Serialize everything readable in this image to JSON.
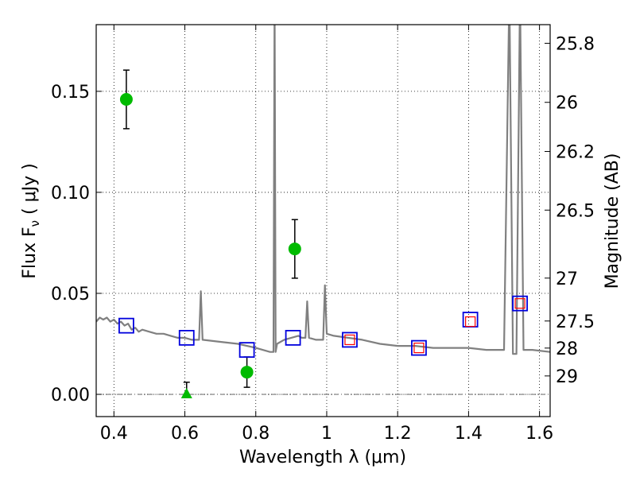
{
  "chart_data": {
    "type": "scatter",
    "xlabel": "Wavelength  λ (μm)",
    "ylabel": "Flux  F",
    "ylabel_sub": "ν",
    "ylabel_unit": "  ( μJy )",
    "y2label": "Magnitude (AB)",
    "xlim": [
      0.35,
      1.63
    ],
    "ylim": [
      -0.011,
      0.183
    ],
    "grid": true,
    "x_ticks": [
      {
        "value": 0.4,
        "label": "0.4"
      },
      {
        "value": 0.6,
        "label": "0.6"
      },
      {
        "value": 0.8,
        "label": "0.8"
      },
      {
        "value": 1.0,
        "label": "1"
      },
      {
        "value": 1.2,
        "label": "1.2"
      },
      {
        "value": 1.4,
        "label": "1.4"
      },
      {
        "value": 1.6,
        "label": "1.6"
      }
    ],
    "y_ticks": [
      {
        "value": 0.0,
        "label": "0.00"
      },
      {
        "value": 0.05,
        "label": "0.05"
      },
      {
        "value": 0.1,
        "label": "0.10"
      },
      {
        "value": 0.15,
        "label": "0.15"
      }
    ],
    "y2_ticks": [
      {
        "value": 25.8,
        "label": "25.8"
      },
      {
        "value": 26.0,
        "label": "26"
      },
      {
        "value": 26.2,
        "label": "26.2"
      },
      {
        "value": 26.5,
        "label": "26.5"
      },
      {
        "value": 27.0,
        "label": "27"
      },
      {
        "value": 27.5,
        "label": "27.5"
      },
      {
        "value": 28.0,
        "label": "28"
      },
      {
        "value": 29.0,
        "label": "29"
      }
    ],
    "model_spectrum": {
      "color": "#808080",
      "points": [
        [
          0.35,
          0.036
        ],
        [
          0.36,
          0.038
        ],
        [
          0.37,
          0.037
        ],
        [
          0.38,
          0.038
        ],
        [
          0.39,
          0.036
        ],
        [
          0.4,
          0.037
        ],
        [
          0.41,
          0.035
        ],
        [
          0.42,
          0.036
        ],
        [
          0.43,
          0.034
        ],
        [
          0.44,
          0.035
        ],
        [
          0.45,
          0.032
        ],
        [
          0.46,
          0.033
        ],
        [
          0.47,
          0.031
        ],
        [
          0.48,
          0.032
        ],
        [
          0.5,
          0.031
        ],
        [
          0.52,
          0.03
        ],
        [
          0.54,
          0.03
        ],
        [
          0.56,
          0.029
        ],
        [
          0.58,
          0.028
        ],
        [
          0.6,
          0.028
        ],
        [
          0.62,
          0.027
        ],
        [
          0.64,
          0.027
        ],
        [
          0.645,
          0.051
        ],
        [
          0.65,
          0.027
        ],
        [
          0.7,
          0.026
        ],
        [
          0.75,
          0.025
        ],
        [
          0.8,
          0.023
        ],
        [
          0.84,
          0.021
        ],
        [
          0.85,
          0.021
        ],
        [
          0.853,
          0.2
        ],
        [
          0.856,
          0.021
        ],
        [
          0.86,
          0.025
        ],
        [
          0.88,
          0.027
        ],
        [
          0.9,
          0.028
        ],
        [
          0.92,
          0.029
        ],
        [
          0.93,
          0.028
        ],
        [
          0.94,
          0.028
        ],
        [
          0.945,
          0.046
        ],
        [
          0.95,
          0.028
        ],
        [
          0.97,
          0.027
        ],
        [
          0.99,
          0.027
        ],
        [
          0.995,
          0.054
        ],
        [
          1.0,
          0.03
        ],
        [
          1.02,
          0.029
        ],
        [
          1.06,
          0.028
        ],
        [
          1.1,
          0.027
        ],
        [
          1.15,
          0.025
        ],
        [
          1.2,
          0.024
        ],
        [
          1.25,
          0.024
        ],
        [
          1.3,
          0.023
        ],
        [
          1.35,
          0.023
        ],
        [
          1.4,
          0.023
        ],
        [
          1.45,
          0.022
        ],
        [
          1.5,
          0.022
        ],
        [
          1.515,
          0.2
        ],
        [
          1.525,
          0.02
        ],
        [
          1.535,
          0.02
        ],
        [
          1.545,
          0.2
        ],
        [
          1.555,
          0.022
        ],
        [
          1.58,
          0.022
        ],
        [
          1.63,
          0.021
        ]
      ]
    },
    "series": [
      {
        "marker": "circle",
        "color": "#00bb00",
        "points": [
          {
            "x": 0.435,
            "y": 0.146,
            "yerr": 0.0145
          },
          {
            "x": 0.775,
            "y": 0.011,
            "yerr": 0.0075
          },
          {
            "x": 0.91,
            "y": 0.072,
            "yerr": 0.0145
          }
        ]
      },
      {
        "marker": "triangle",
        "color": "#00bb00",
        "points": [
          {
            "x": 0.605,
            "y": 0.0,
            "yerr_up": 0.006
          }
        ]
      },
      {
        "marker": "square-open",
        "color": "#0000dd",
        "points": [
          {
            "x": 0.435,
            "y": 0.034
          },
          {
            "x": 0.605,
            "y": 0.028
          },
          {
            "x": 0.775,
            "y": 0.022
          },
          {
            "x": 0.905,
            "y": 0.028
          },
          {
            "x": 1.065,
            "y": 0.027
          },
          {
            "x": 1.26,
            "y": 0.023
          },
          {
            "x": 1.405,
            "y": 0.037
          },
          {
            "x": 1.545,
            "y": 0.045
          }
        ]
      },
      {
        "marker": "square-open-small",
        "color": "#ff0000",
        "points": [
          {
            "x": 1.065,
            "y": 0.027
          },
          {
            "x": 1.26,
            "y": 0.023
          },
          {
            "x": 1.405,
            "y": 0.036
          },
          {
            "x": 1.545,
            "y": 0.045
          }
        ]
      }
    ]
  }
}
